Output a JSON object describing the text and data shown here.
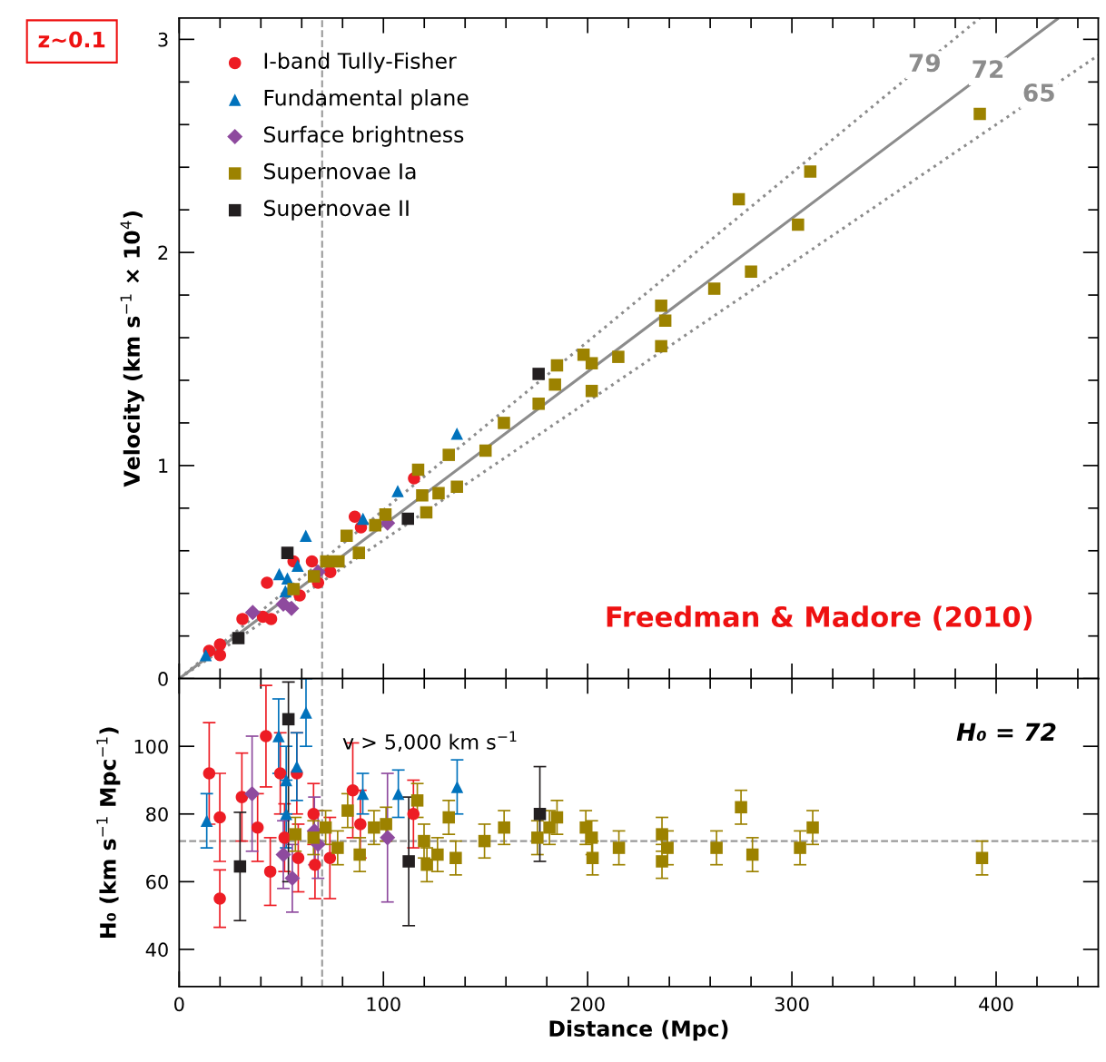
{
  "chart_data": [
    {
      "type": "scatter",
      "ylabel": "Velocity (km s$^{−1}$ × 10$^{4}$)",
      "xlim": [
        0,
        450
      ],
      "ylim": [
        0,
        3.1
      ],
      "xticks": [
        0,
        {
          "value": 20,
          "label": null
        },
        {
          "value": 40,
          "label": null
        },
        {
          "value": 60,
          "label": null
        },
        {
          "value": 80,
          "label": null
        },
        100,
        {
          "value": 120,
          "label": null
        },
        {
          "value": 140,
          "label": null
        },
        {
          "value": 160,
          "label": null
        },
        {
          "value": 180,
          "label": null
        },
        200,
        {
          "value": 220,
          "label": null
        },
        {
          "value": 240,
          "label": null
        },
        {
          "value": 260,
          "label": null
        },
        {
          "value": 280,
          "label": null
        },
        300,
        {
          "value": 320,
          "label": null
        },
        {
          "value": 340,
          "label": null
        },
        {
          "value": 360,
          "label": null
        },
        {
          "value": 380,
          "label": null
        },
        400,
        {
          "value": 420,
          "label": null
        },
        {
          "value": 440,
          "label": null
        }
      ],
      "yticks": [
        0,
        {
          "value": 0.2,
          "label": null
        },
        {
          "value": 0.4,
          "label": null
        },
        {
          "value": 0.6,
          "label": null
        },
        {
          "value": 0.8,
          "label": null
        },
        1,
        {
          "value": 1.2,
          "label": null
        },
        {
          "value": 1.4,
          "label": null
        },
        {
          "value": 1.6,
          "label": null
        },
        {
          "value": 1.8,
          "label": null
        },
        2,
        {
          "value": 2.2,
          "label": null
        },
        {
          "value": 2.4,
          "label": null
        },
        {
          "value": 2.6,
          "label": null
        },
        {
          "value": 2.8,
          "label": null
        },
        3
      ],
      "tick_labels": "y",
      "grid": false,
      "legend": "top left",
      "ref_lines": [
        {
          "axis": "x",
          "value": 70,
          "color": "#9a9a9a",
          "line_style": "dashed"
        }
      ],
      "annotations": [
        "z~0.1",
        "Freedman & Madore (2010)",
        {
          "text": "79",
          "x": 365,
          "y": 2.88
        },
        {
          "text": "72",
          "x": 396,
          "y": 2.85
        },
        {
          "text": "65",
          "x": 421,
          "y": 2.74
        }
      ],
      "series": [
        {
          "type": "line",
          "color": "#8c8c8c",
          "line_style": "dotted",
          "x": [
            0,
            392
          ],
          "values": [
            0,
            3.1
          ]
        },
        {
          "type": "line",
          "color": "#8c8c8c",
          "line_style": "solid",
          "x": [
            0,
            430
          ],
          "values": [
            0,
            3.096
          ]
        },
        {
          "type": "line",
          "color": "#8c8c8c",
          "line_style": "dotted",
          "x": [
            0,
            450
          ],
          "values": [
            0,
            2.925
          ]
        },
        {
          "name": "I-band Tully-Fisher",
          "color": "#ed1c24",
          "marker": "circle",
          "x": [
            14.7,
            20,
            20,
            31,
            41,
            45,
            43,
            56,
            59,
            65,
            68,
            74,
            86,
            89,
            115
          ],
          "values": [
            0.13,
            0.16,
            0.11,
            0.28,
            0.29,
            0.28,
            0.45,
            0.55,
            0.39,
            0.55,
            0.45,
            0.5,
            0.76,
            0.71,
            0.94
          ]
        },
        {
          "name": "Fundamental plane",
          "color": "#0072bc",
          "marker": "triangle",
          "x": [
            13,
            49,
            53,
            58,
            62,
            90,
            107,
            136,
            52
          ],
          "values": [
            0.11,
            0.49,
            0.47,
            0.53,
            0.67,
            0.75,
            0.88,
            1.15,
            0.41
          ]
        },
        {
          "name": "Surface brightness",
          "color": "#8e4a9e",
          "marker": "diamond",
          "x": [
            36,
            51,
            55,
            68,
            102
          ],
          "values": [
            0.31,
            0.35,
            0.33,
            0.5,
            0.73
          ]
        },
        {
          "name": "Supernovae Ia",
          "color": "#9c8200",
          "marker": "square",
          "x": [
            56,
            66,
            72,
            78,
            82,
            88,
            96,
            101,
            117,
            119,
            121,
            127,
            136,
            132,
            150,
            159,
            176,
            184,
            185,
            198,
            202,
            202,
            215,
            236,
            238,
            236,
            262,
            280,
            274,
            303,
            309,
            392
          ],
          "values": [
            0.42,
            0.48,
            0.55,
            0.55,
            0.67,
            0.59,
            0.72,
            0.77,
            0.98,
            0.86,
            0.78,
            0.87,
            0.9,
            1.05,
            1.07,
            1.2,
            1.29,
            1.38,
            1.47,
            1.52,
            1.48,
            1.35,
            1.51,
            1.75,
            1.68,
            1.56,
            1.83,
            1.91,
            2.25,
            2.13,
            2.38,
            2.65
          ]
        },
        {
          "name": "Supernovae II",
          "color": "#231f20",
          "marker": "square",
          "x": [
            29,
            53,
            112,
            176
          ],
          "values": [
            0.19,
            0.59,
            0.75,
            1.43
          ]
        }
      ]
    },
    {
      "type": "scatter",
      "xlabel": "Distance (Mpc)",
      "ylabel": "H₀ (km s$^{−1}$ Mpc$^{−1}$)",
      "xlim": [
        0,
        450
      ],
      "ylim": [
        29,
        120
      ],
      "xticks": [
        0,
        {
          "value": 20,
          "label": null
        },
        {
          "value": 40,
          "label": null
        },
        {
          "value": 60,
          "label": null
        },
        {
          "value": 80,
          "label": null
        },
        100,
        {
          "value": 120,
          "label": null
        },
        {
          "value": 140,
          "label": null
        },
        {
          "value": 160,
          "label": null
        },
        {
          "value": 180,
          "label": null
        },
        200,
        {
          "value": 220,
          "label": null
        },
        {
          "value": 240,
          "label": null
        },
        {
          "value": 260,
          "label": null
        },
        {
          "value": 280,
          "label": null
        },
        300,
        {
          "value": 320,
          "label": null
        },
        {
          "value": 340,
          "label": null
        },
        {
          "value": 360,
          "label": null
        },
        {
          "value": 380,
          "label": null
        },
        400,
        {
          "value": 420,
          "label": null
        },
        {
          "value": 440,
          "label": null
        }
      ],
      "yticks": [
        40,
        60,
        80,
        100
      ],
      "grid": false,
      "ref_lines": [
        {
          "axis": "x",
          "value": 70,
          "color": "#9a9a9a",
          "line_style": "dashed",
          "label": "v > 5,000 km s$^{−1}$"
        },
        {
          "axis": "y",
          "value": 72,
          "color": "#9a9a9a",
          "line_style": "dashed"
        }
      ],
      "annotations": [
        "H₀ = 72"
      ],
      "series": [
        {
          "color": "#ed1c24",
          "marker": "circle",
          "x": [
            14.7,
            19.9,
            19.9,
            30.7,
            42.5,
            38.4,
            44.6,
            49.5,
            57.6,
            51.6,
            58.3,
            65.8,
            66.5,
            73.8,
            85,
            88.7,
            114.7
          ],
          "values": [
            92,
            79,
            55,
            85,
            103,
            76,
            63,
            92,
            92,
            73,
            67,
            80,
            65,
            67,
            87,
            77,
            80
          ],
          "errors": [
            15,
            13,
            8.5,
            13,
            15,
            10,
            10,
            12,
            12,
            10,
            10,
            9,
            10,
            12,
            14,
            10,
            10
          ]
        },
        {
          "color": "#0072bc",
          "marker": "triangle",
          "x": [
            13.5,
            48.7,
            57.6,
            52.4,
            52.4,
            62.1,
            89.9,
            107.3,
            136.1
          ],
          "values": [
            78,
            103,
            94,
            90,
            80,
            110,
            86,
            86,
            88
          ],
          "errors": [
            8,
            11,
            10,
            10,
            10,
            10,
            6,
            7,
            8
          ]
        },
        {
          "color": "#8e4a9e",
          "marker": "diamond",
          "x": [
            35.7,
            51,
            55.4,
            66.2,
            68,
            102
          ],
          "values": [
            86,
            68,
            61,
            75,
            71,
            73
          ],
          "errors": [
            17,
            10,
            10,
            10,
            10,
            19
          ]
        },
        {
          "color": "#9c8200",
          "marker": "square",
          "x": [
            56.9,
            65.8,
            71.7,
            77.6,
            82.5,
            88.4,
            95.4,
            101.3,
            116.6,
            119.9,
            121.3,
            126.5,
            135.4,
            132,
            149.5,
            159.1,
            175.4,
            181.3,
            185,
            199.1,
            202,
            202.4,
            215.3,
            236.4,
            239.1,
            236.4,
            263.1,
            275.1,
            280.7,
            304,
            310.2,
            393.1
          ],
          "values": [
            74,
            73,
            76,
            70,
            81,
            68,
            76,
            77,
            84,
            72,
            65,
            68,
            67,
            79,
            72,
            76,
            73,
            76,
            79,
            76,
            73,
            67,
            70,
            74,
            70,
            66,
            70,
            82,
            68,
            70,
            76,
            67
          ],
          "errors": [
            5,
            5,
            5,
            5,
            5,
            5,
            5,
            5,
            5,
            5,
            5,
            5,
            5,
            5,
            5,
            5,
            5,
            5,
            5,
            5,
            5,
            5,
            5,
            5,
            5,
            5,
            5,
            5,
            5,
            5,
            5,
            5
          ]
        },
        {
          "color": "#231f20",
          "marker": "square",
          "x": [
            29.8,
            53.5,
            112.4,
            176.6
          ],
          "values": [
            64.5,
            108,
            66,
            80
          ],
          "errors": [
            16,
            [
              60,
              119
            ],
            19,
            14
          ]
        }
      ]
    }
  ]
}
